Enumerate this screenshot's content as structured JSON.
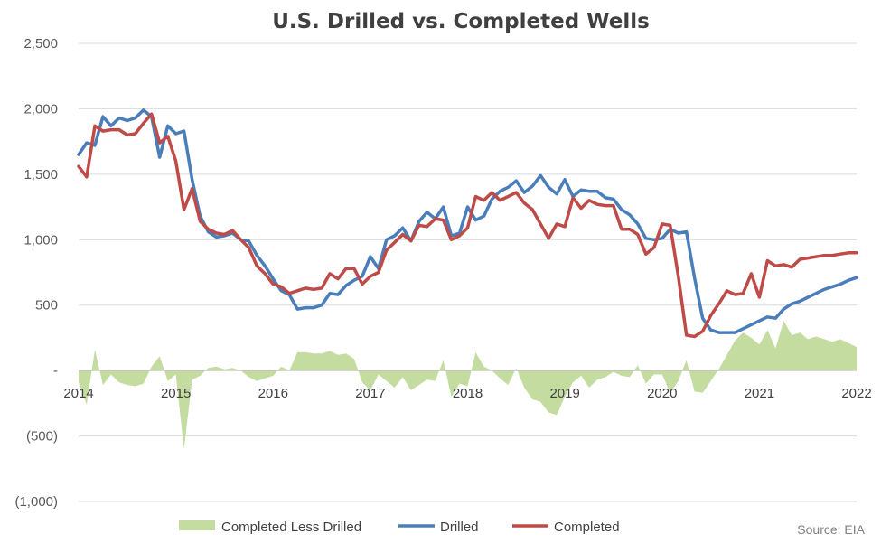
{
  "chart_data": {
    "type": "line",
    "title": "U.S. Drilled vs. Completed Wells",
    "source": "Source: EIA",
    "ylim": [
      -1000,
      2500
    ],
    "yticks": [
      {
        "value": 2500,
        "label": "2,500"
      },
      {
        "value": 2000,
        "label": "2,000"
      },
      {
        "value": 1500,
        "label": "1,500"
      },
      {
        "value": 1000,
        "label": "1,000"
      },
      {
        "value": 500,
        "label": "500"
      },
      {
        "value": 0,
        "label": "-"
      },
      {
        "value": -500,
        "label": "(500)"
      },
      {
        "value": -1000,
        "label": "(1,000)"
      }
    ],
    "xlim": [
      2014,
      2022
    ],
    "xticks": [
      {
        "value": 2014,
        "label": "2014"
      },
      {
        "value": 2015,
        "label": "2015"
      },
      {
        "value": 2016,
        "label": "2016"
      },
      {
        "value": 2017,
        "label": "2017"
      },
      {
        "value": 2018,
        "label": "2018"
      },
      {
        "value": 2019,
        "label": "2019"
      },
      {
        "value": 2020,
        "label": "2020"
      },
      {
        "value": 2021,
        "label": "2021"
      },
      {
        "value": 2022,
        "label": "2022"
      }
    ],
    "grid": true,
    "legend": "bottom",
    "series": [
      {
        "name": "Completed Less Drilled",
        "type": "area",
        "color": "#c5dca0",
        "x": [
          2014.0,
          2014.083,
          2014.167,
          2014.25,
          2014.333,
          2014.417,
          2014.5,
          2014.583,
          2014.667,
          2014.75,
          2014.833,
          2014.917,
          2015.0,
          2015.083,
          2015.167,
          2015.25,
          2015.333,
          2015.417,
          2015.5,
          2015.583,
          2015.667,
          2015.75,
          2015.833,
          2015.917,
          2016.0,
          2016.083,
          2016.167,
          2016.25,
          2016.333,
          2016.417,
          2016.5,
          2016.583,
          2016.667,
          2016.75,
          2016.833,
          2016.917,
          2017.0,
          2017.083,
          2017.167,
          2017.25,
          2017.333,
          2017.417,
          2017.5,
          2017.583,
          2017.667,
          2017.75,
          2017.833,
          2017.917,
          2018.0,
          2018.083,
          2018.167,
          2018.25,
          2018.333,
          2018.417,
          2018.5,
          2018.583,
          2018.667,
          2018.75,
          2018.833,
          2018.917,
          2019.0,
          2019.083,
          2019.167,
          2019.25,
          2019.333,
          2019.417,
          2019.5,
          2019.583,
          2019.667,
          2019.75,
          2019.833,
          2019.917,
          2020.0,
          2020.083,
          2020.167,
          2020.25,
          2020.333,
          2020.417,
          2020.5,
          2020.583,
          2020.667,
          2020.75,
          2020.833,
          2020.917,
          2021.0,
          2021.083,
          2021.167,
          2021.25,
          2021.333,
          2021.417,
          2021.5,
          2021.583,
          2021.667,
          2021.75,
          2021.833,
          2021.917,
          2022.0
        ],
        "values": [
          -90,
          -260,
          160,
          -110,
          -30,
          -90,
          -110,
          -120,
          -100,
          30,
          110,
          -80,
          -30,
          -600,
          -70,
          -40,
          20,
          30,
          10,
          20,
          0,
          -50,
          -80,
          -60,
          -40,
          30,
          0,
          140,
          140,
          130,
          130,
          150,
          120,
          130,
          90,
          -90,
          -150,
          -30,
          -80,
          -130,
          -50,
          -150,
          -110,
          -70,
          -80,
          80,
          -200,
          -100,
          -120,
          140,
          30,
          0,
          -60,
          -110,
          20,
          -130,
          -220,
          -240,
          -320,
          -340,
          -200,
          -90,
          -40,
          -130,
          -70,
          -50,
          -10,
          -40,
          -50,
          40,
          -100,
          -30,
          -30,
          -170,
          -80,
          80,
          -160,
          -170,
          -80,
          10,
          120,
          230,
          290,
          250,
          200,
          310,
          170,
          380,
          270,
          290,
          240,
          260,
          240,
          220,
          240,
          210,
          180
        ]
      },
      {
        "name": "Drilled",
        "type": "line",
        "color": "#4a7ebb",
        "x": [
          2014.0,
          2014.083,
          2014.167,
          2014.25,
          2014.333,
          2014.417,
          2014.5,
          2014.583,
          2014.667,
          2014.75,
          2014.833,
          2014.917,
          2015.0,
          2015.083,
          2015.167,
          2015.25,
          2015.333,
          2015.417,
          2015.5,
          2015.583,
          2015.667,
          2015.75,
          2015.833,
          2015.917,
          2016.0,
          2016.083,
          2016.167,
          2016.25,
          2016.333,
          2016.417,
          2016.5,
          2016.583,
          2016.667,
          2016.75,
          2016.833,
          2016.917,
          2017.0,
          2017.083,
          2017.167,
          2017.25,
          2017.333,
          2017.417,
          2017.5,
          2017.583,
          2017.667,
          2017.75,
          2017.833,
          2017.917,
          2018.0,
          2018.083,
          2018.167,
          2018.25,
          2018.333,
          2018.417,
          2018.5,
          2018.583,
          2018.667,
          2018.75,
          2018.833,
          2018.917,
          2019.0,
          2019.083,
          2019.167,
          2019.25,
          2019.333,
          2019.417,
          2019.5,
          2019.583,
          2019.667,
          2019.75,
          2019.833,
          2019.917,
          2020.0,
          2020.083,
          2020.167,
          2020.25,
          2020.333,
          2020.417,
          2020.5,
          2020.583,
          2020.667,
          2020.75,
          2020.833,
          2020.917,
          2021.0,
          2021.083,
          2021.167,
          2021.25,
          2021.333,
          2021.417,
          2021.5,
          2021.583,
          2021.667,
          2021.75,
          2021.833,
          2021.917,
          2022.0
        ],
        "values": [
          1650,
          1740,
          1720,
          1940,
          1870,
          1930,
          1910,
          1930,
          1990,
          1940,
          1630,
          1870,
          1810,
          1830,
          1460,
          1180,
          1060,
          1020,
          1030,
          1050,
          1000,
          990,
          880,
          800,
          700,
          610,
          580,
          470,
          480,
          480,
          500,
          590,
          580,
          650,
          690,
          720,
          870,
          780,
          1000,
          1030,
          1090,
          990,
          1140,
          1210,
          1160,
          1250,
          1030,
          1050,
          1250,
          1150,
          1180,
          1310,
          1370,
          1400,
          1450,
          1360,
          1410,
          1490,
          1400,
          1350,
          1460,
          1330,
          1380,
          1370,
          1370,
          1320,
          1310,
          1230,
          1190,
          1120,
          1010,
          1000,
          1010,
          1080,
          1050,
          1060,
          710,
          400,
          310,
          290,
          290,
          290,
          320,
          350,
          380,
          410,
          400,
          470,
          510,
          530,
          560,
          590,
          620,
          640,
          660,
          690,
          710
        ]
      },
      {
        "name": "Completed",
        "type": "line",
        "color": "#be4b48",
        "x": [
          2014.0,
          2014.083,
          2014.167,
          2014.25,
          2014.333,
          2014.417,
          2014.5,
          2014.583,
          2014.667,
          2014.75,
          2014.833,
          2014.917,
          2015.0,
          2015.083,
          2015.167,
          2015.25,
          2015.333,
          2015.417,
          2015.5,
          2015.583,
          2015.667,
          2015.75,
          2015.833,
          2015.917,
          2016.0,
          2016.083,
          2016.167,
          2016.25,
          2016.333,
          2016.417,
          2016.5,
          2016.583,
          2016.667,
          2016.75,
          2016.833,
          2016.917,
          2017.0,
          2017.083,
          2017.167,
          2017.25,
          2017.333,
          2017.417,
          2017.5,
          2017.583,
          2017.667,
          2017.75,
          2017.833,
          2017.917,
          2018.0,
          2018.083,
          2018.167,
          2018.25,
          2018.333,
          2018.417,
          2018.5,
          2018.583,
          2018.667,
          2018.75,
          2018.833,
          2018.917,
          2019.0,
          2019.083,
          2019.167,
          2019.25,
          2019.333,
          2019.417,
          2019.5,
          2019.583,
          2019.667,
          2019.75,
          2019.833,
          2019.917,
          2020.0,
          2020.083,
          2020.167,
          2020.25,
          2020.333,
          2020.417,
          2020.5,
          2020.583,
          2020.667,
          2020.75,
          2020.833,
          2020.917,
          2021.0,
          2021.083,
          2021.167,
          2021.25,
          2021.333,
          2021.417,
          2021.5,
          2021.583,
          2021.667,
          2021.75,
          2021.833,
          2021.917,
          2022.0
        ],
        "values": [
          1560,
          1480,
          1870,
          1830,
          1840,
          1840,
          1800,
          1810,
          1890,
          1960,
          1740,
          1790,
          1600,
          1230,
          1390,
          1140,
          1080,
          1050,
          1040,
          1070,
          1000,
          940,
          800,
          740,
          660,
          640,
          590,
          610,
          630,
          620,
          630,
          740,
          700,
          780,
          780,
          660,
          720,
          750,
          920,
          980,
          1040,
          990,
          1110,
          1100,
          1160,
          1150,
          1000,
          1030,
          1090,
          1330,
          1300,
          1360,
          1300,
          1330,
          1360,
          1280,
          1230,
          1120,
          1010,
          1120,
          1100,
          1320,
          1240,
          1300,
          1270,
          1260,
          1260,
          1080,
          1080,
          1040,
          890,
          940,
          1120,
          1110,
          720,
          270,
          260,
          300,
          420,
          510,
          610,
          580,
          590,
          740,
          560,
          840,
          800,
          810,
          790,
          850,
          860,
          870,
          880,
          880,
          890,
          900,
          900
        ]
      }
    ]
  }
}
